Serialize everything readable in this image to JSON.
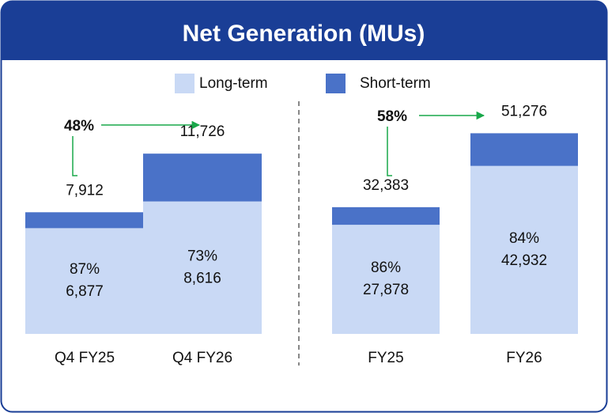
{
  "title": "Net Generation (MUs)",
  "chart_data": [
    {
      "type": "bar",
      "stacked": true,
      "categories": [
        "Q4 FY25",
        "Q4 FY26"
      ],
      "series": [
        {
          "name": "Long-term",
          "color": "#c9d9f5",
          "values": [
            6877,
            8616
          ],
          "value_labels": [
            "6,877",
            "8,616"
          ],
          "share_labels": [
            "87%",
            "73%"
          ]
        },
        {
          "name": "Short-term",
          "color": "#4a72c8",
          "values": [
            1035,
            3110
          ]
        }
      ],
      "totals": [
        7912,
        11726
      ],
      "total_labels": [
        "7,912",
        "11,726"
      ],
      "growth_label": "48%",
      "ylim": [
        0,
        14000
      ]
    },
    {
      "type": "bar",
      "stacked": true,
      "categories": [
        "FY25",
        "FY26"
      ],
      "series": [
        {
          "color": "#c9d9f5",
          "values": [
            27878,
            42932
          ],
          "value_labels": [
            "27,878",
            "42,932"
          ],
          "share_labels": [
            "86%",
            "84%"
          ]
        },
        {
          "color": "#4a72c8",
          "values": [
            4505,
            8344
          ]
        }
      ],
      "totals": [
        32383,
        51276
      ],
      "total_labels": [
        "32,383",
        "51,276"
      ],
      "growth_label": "58%",
      "ylim": [
        0,
        55000
      ]
    }
  ]
}
